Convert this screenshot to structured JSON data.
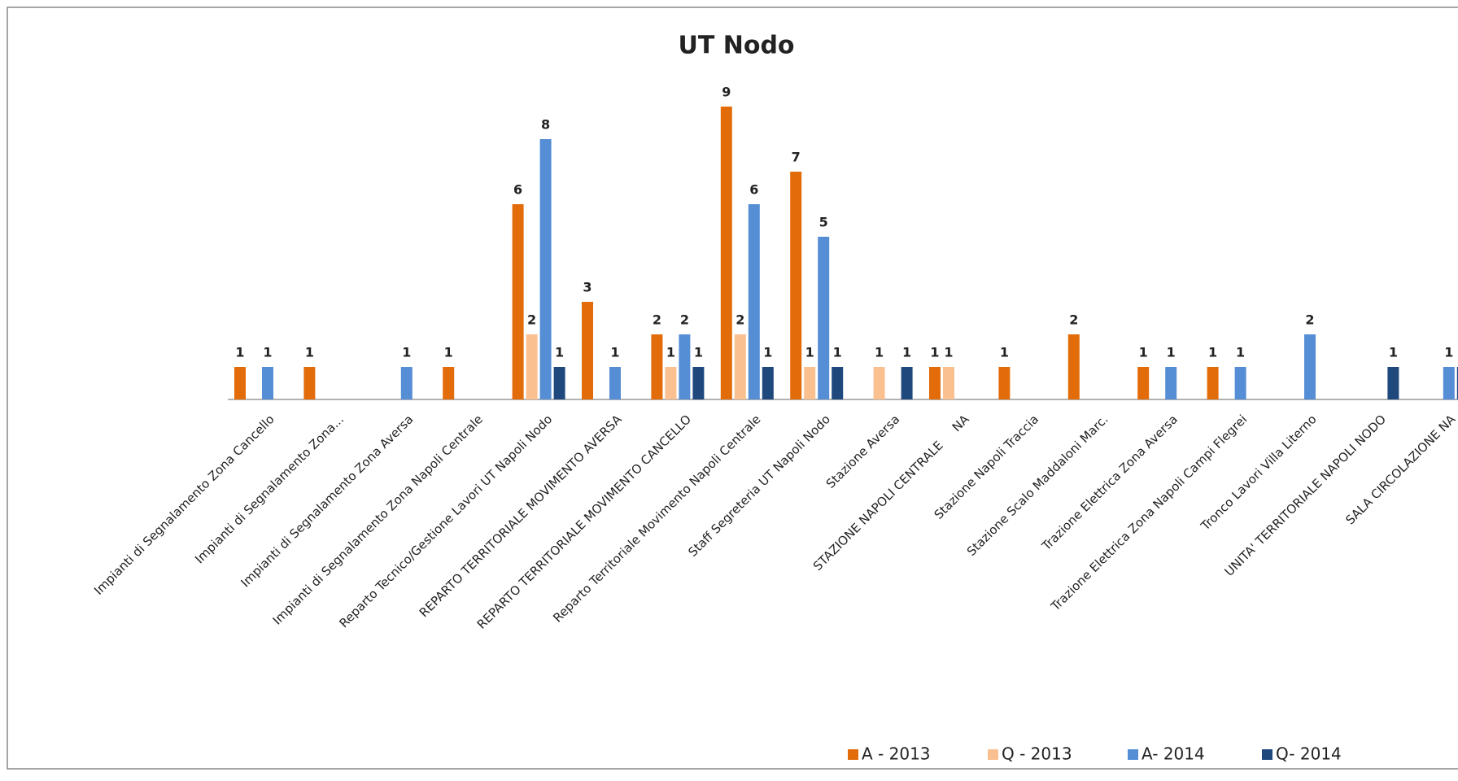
{
  "chart_data": {
    "type": "bar",
    "title": "UT Nodo",
    "categories": [
      "Impianti di Segnalamento Zona Cancello",
      "Impianti di Segnalamento Zona...",
      "Impianti di Segnalamento Zona Aversa",
      "Impianti di Segnalamento Zona Napoli Centrale",
      "Reparto Tecnico/Gestione Lavori UT Napoli Nodo",
      "REPARTO TERRITORIALE MOVIMENTO AVERSA",
      "REPARTO TERRITORIALE MOVIMENTO CANCELLO",
      "Reparto Territoriale Movimento Napoli Centrale",
      "Staff Segreteria UT Napoli Nodo",
      "Stazione Aversa",
      "STAZIONE NAPOLI CENTRALE     NA",
      "Stazione Napoli Traccia",
      "Stazione Scalo Maddaloni Marc.",
      "Trazione Elettrica Zona Aversa",
      "Trazione Elettrica Zona Napoli Campi Flegrei",
      "Tronco Lavori Villa Literno",
      "UNITA' TERRITORIALE NAPOLI NODO",
      "SALA CIRCOLAZIONE NA"
    ],
    "series": [
      {
        "name": "A - 2013",
        "color": "#e36c0a",
        "values": [
          1,
          1,
          null,
          1,
          6,
          3,
          2,
          9,
          7,
          null,
          1,
          1,
          2,
          1,
          1,
          null,
          null,
          null
        ]
      },
      {
        "name": "Q - 2013",
        "color": "#fac090",
        "values": [
          null,
          null,
          null,
          null,
          2,
          null,
          1,
          2,
          1,
          1,
          1,
          null,
          null,
          null,
          null,
          null,
          null,
          null
        ]
      },
      {
        "name": "A- 2014",
        "color": "#558ed5",
        "values": [
          1,
          null,
          1,
          null,
          8,
          1,
          2,
          6,
          5,
          null,
          null,
          null,
          null,
          1,
          1,
          2,
          null,
          1
        ]
      },
      {
        "name": "Q- 2014",
        "color": "#1f497d",
        "values": [
          null,
          null,
          null,
          null,
          1,
          null,
          1,
          1,
          1,
          1,
          null,
          null,
          null,
          null,
          null,
          null,
          1,
          1
        ]
      }
    ],
    "legend": "bottom"
  }
}
